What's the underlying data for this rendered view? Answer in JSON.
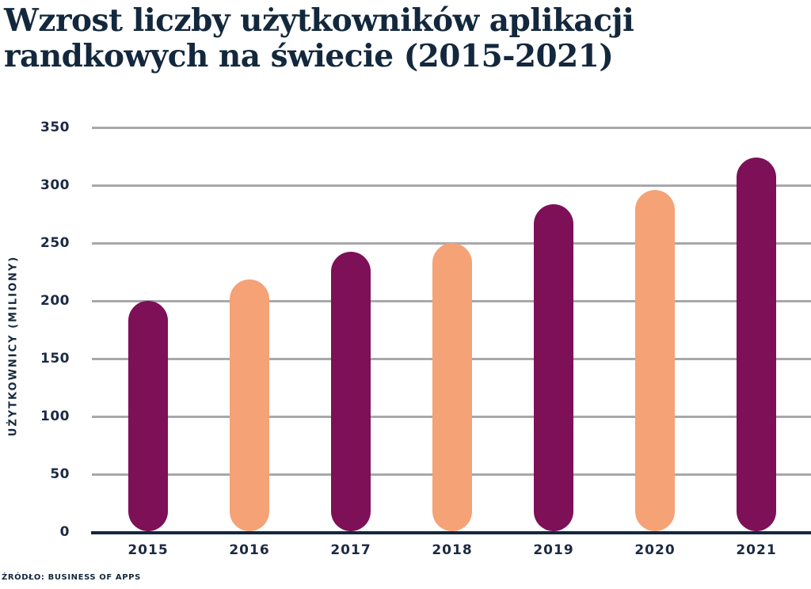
{
  "title": {
    "line1": "Wzrost liczby użytkowników aplikacji",
    "line2": "randkowych na świecie (2015-2021)"
  },
  "source": "ŹRÓDŁO: BUSINESS OF APPS",
  "chart_data": {
    "type": "bar",
    "title": "Wzrost liczby użytkowników aplikacji randkowych na świecie (2015-2021)",
    "categories": [
      "2015",
      "2016",
      "2017",
      "2018",
      "2019",
      "2020",
      "2021"
    ],
    "values": [
      199,
      218,
      242,
      249,
      283,
      295,
      323
    ],
    "bar_colors": [
      "#7D1057",
      "#F4A276",
      "#7D1057",
      "#F4A276",
      "#7D1057",
      "#F4A276",
      "#7D1057"
    ],
    "xlabel": "",
    "ylabel": "UŻYTKOWNICY (MILIONY)",
    "ylim": [
      0,
      350
    ],
    "yticks": [
      350,
      300,
      250,
      200,
      150,
      100,
      50,
      0
    ],
    "grid": true,
    "legend": false
  },
  "colors": {
    "navy_text": "#13283d",
    "tick_text": "#1b2a44",
    "bar_magenta": "#7D1057",
    "bar_peach": "#F4A276",
    "gridline": "#A8A8AC",
    "background": "#FFFFFF"
  }
}
